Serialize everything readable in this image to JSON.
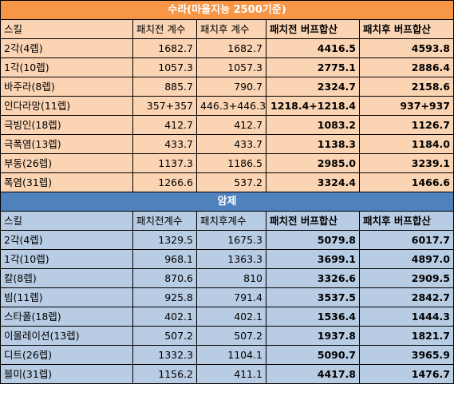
{
  "sections": [
    {
      "title": "수라(마울지능 2500기준)",
      "header": [
        "스킬",
        "패치전 계수",
        "패치후 계수",
        "패치전 버프합산",
        "패치후 버프합산"
      ],
      "rows": [
        [
          "2각(4렙)",
          "1682.7",
          "1682.7",
          "4416.5",
          "4593.8"
        ],
        [
          "1각(10렙)",
          "1057.3",
          "1057.3",
          "2775.1",
          "2886.4"
        ],
        [
          "바주라(8렙)",
          "885.7",
          "790.7",
          "2324.7",
          "2158.6"
        ],
        [
          "인다라망(11렙)",
          "357+357",
          "446.3+446.3",
          "1218.4+1218.4",
          "937+937"
        ],
        [
          "극빙인(18렙)",
          "412.7",
          "412.7",
          "1083.2",
          "1126.7"
        ],
        [
          "극폭염(13렙)",
          "433.7",
          "433.7",
          "1138.3",
          "1184.0"
        ],
        [
          "부동(26렙)",
          "1137.3",
          "1186.5",
          "2985.0",
          "3239.1"
        ],
        [
          "폭염(31렙)",
          "1266.6",
          "537.2",
          "3324.4",
          "1466.6"
        ]
      ]
    },
    {
      "title": "암제",
      "header": [
        "스킬",
        "패치전계수",
        "패치후계수",
        "패치전 버프합산",
        "패치후 버프합산"
      ],
      "rows": [
        [
          "2각(4렙)",
          "1329.5",
          "1675.3",
          "5079.8",
          "6017.7"
        ],
        [
          "1각(10렙)",
          "968.1",
          "1363.3",
          "3699.1",
          "4897.0"
        ],
        [
          "칼(8렙)",
          "870.6",
          "810",
          "3326.6",
          "2909.5"
        ],
        [
          "빔(11렙)",
          "925.8",
          "791.4",
          "3537.5",
          "2842.7"
        ],
        [
          "스타폴(18렙)",
          "402.1",
          "402.1",
          "1536.4",
          "1444.3"
        ],
        [
          "이몰레이션(13렙)",
          "507.2",
          "507.2",
          "1937.8",
          "1821.7"
        ],
        [
          "디트(26렙)",
          "1332.3",
          "1104.1",
          "5090.7",
          "3965.9"
        ],
        [
          "블미(31렙)",
          "1156.2",
          "411.1",
          "4417.8",
          "1476.7"
        ]
      ]
    }
  ],
  "colors": {
    "section1_title": "#f79646",
    "section1_fill": "#fbd4b4",
    "section2_title": "#4f81bd",
    "section2_fill": "#b8cce4"
  }
}
